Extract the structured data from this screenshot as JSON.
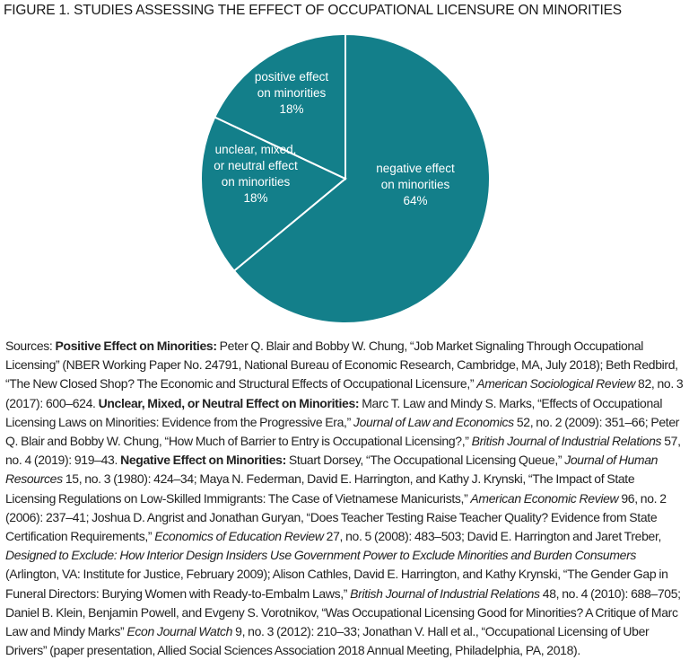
{
  "title": "FIGURE 1. STUDIES ASSESSING THE EFFECT OF OCCUPATIONAL LICENSURE ON MINORITIES",
  "chart_data": {
    "type": "pie",
    "title": "FIGURE 1. STUDIES ASSESSING THE EFFECT OF OCCUPATIONAL LICENSURE ON MINORITIES",
    "slice_color": "#137f8a",
    "separator_color": "#ffffff",
    "start": "12 o'clock, clockwise",
    "slices": [
      {
        "label_lines": [
          "negative effect",
          "on minorities"
        ],
        "value": 64,
        "value_label": "64%"
      },
      {
        "label_lines": [
          "unclear, mixed,",
          "or neutral effect",
          "on minorities"
        ],
        "value": 18,
        "value_label": "18%"
      },
      {
        "label_lines": [
          "positive effect",
          "on minorities"
        ],
        "value": 18,
        "value_label": "18%"
      }
    ]
  },
  "sources": [
    {
      "t": "Sources: ",
      "s": "n"
    },
    {
      "t": "Positive Effect on Minorities:",
      "s": "b"
    },
    {
      "t": " Peter Q. Blair and Bobby W. Chung, “Job Market Signaling Through Occupational Licensing” (NBER Working Paper No. 24791, National Bureau of Economic Research, Cambridge, MA, July 2018); Beth Redbird, “The New Closed Shop? The Economic and Structural Effects of Occupational Licensure,” ",
      "s": "n"
    },
    {
      "t": "American Sociological Review",
      "s": "i"
    },
    {
      "t": " 82, no. 3 (2017): 600–624. ",
      "s": "n"
    },
    {
      "t": "Unclear, Mixed, or Neutral Effect on Minorities:",
      "s": "b"
    },
    {
      "t": " Marc T. Law and Mindy S. Marks, “Effects of Occupational Licensing Laws on Minorities: Evidence from the Progressive Era,” ",
      "s": "n"
    },
    {
      "t": "Journal of Law and Economics",
      "s": "i"
    },
    {
      "t": " 52, no. 2 (2009): 351–66; Peter Q. Blair and Bobby W. Chung, “How Much of Barrier to Entry is Occupational Licensing?,” ",
      "s": "n"
    },
    {
      "t": "British Journal of Industrial Relations",
      "s": "i"
    },
    {
      "t": " 57, no. 4 (2019): 919–43. ",
      "s": "n"
    },
    {
      "t": "Negative Effect on Minorities:",
      "s": "b"
    },
    {
      "t": " Stuart Dorsey, “The Occupational Licensing Queue,” ",
      "s": "n"
    },
    {
      "t": "Journal of Human Resources",
      "s": "i"
    },
    {
      "t": " 15, no. 3 (1980): 424–34; Maya N. Federman, David E. Harrington, and Kathy J. Krynski, “The Impact of State Licensing Regulations on Low-Skilled Immigrants: The Case of Vietnamese Manicurists,” ",
      "s": "n"
    },
    {
      "t": "American Economic Review",
      "s": "i"
    },
    {
      "t": " 96, no. 2 (2006): 237–41; Joshua D. Angrist and Jonathan Guryan, “Does Teacher Testing Raise Teacher Quality? Evidence from State Certification Requirements,” ",
      "s": "n"
    },
    {
      "t": "Economics of Education Review",
      "s": "i"
    },
    {
      "t": " 27, no. 5 (2008): 483–503; David E. Harrington and Jaret Treber, ",
      "s": "n"
    },
    {
      "t": "Designed to Exclude: How Interior Design Insiders Use Government Power to Exclude Minorities and Burden Consumers",
      "s": "i"
    },
    {
      "t": " (Arlington, VA: Institute for Justice, February 2009); Alison Cathles, David E. Harrington, and Kathy Krynski, “The Gender Gap in Funeral Directors: Burying Women with Ready-to-Embalm Laws,” ",
      "s": "n"
    },
    {
      "t": "British Journal of Industrial Relations",
      "s": "i"
    },
    {
      "t": " 48, no. 4 (2010): 688–705; Daniel B. Klein, Benjamin Powell, and Evgeny S. Vorotnikov, “Was Occupational Licensing Good for Minorities? A Critique of Marc Law and Mindy Marks” ",
      "s": "n"
    },
    {
      "t": "Econ Journal Watch",
      "s": "i"
    },
    {
      "t": " 9, no. 3 (2012): 210–33; Jonathan V. Hall et al., “Occupational Licensing of Uber Drivers” (paper presentation, Allied Social Sciences Association 2018 Annual Meeting, Philadelphia, PA, 2018).",
      "s": "n"
    }
  ]
}
